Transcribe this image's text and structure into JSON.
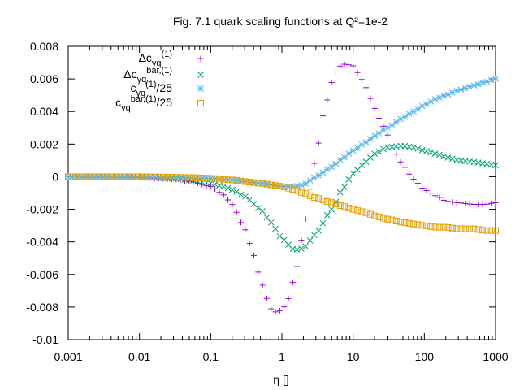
{
  "chart_data": {
    "type": "scatter",
    "title": "Fig. 7.1 quark scaling functions at Q²=1e-2",
    "xlabel": "η []",
    "ylabel": "",
    "x_scale": "log",
    "xlim": [
      0.001,
      1000
    ],
    "ylim": [
      -0.01,
      0.008
    ],
    "x_ticks": [
      "0.001",
      "0.01",
      "0.1",
      "1",
      "10",
      "100",
      "1000"
    ],
    "y_ticks": [
      "-0.01",
      "-0.008",
      "-0.006",
      "-0.004",
      "-0.002",
      "0",
      "0.002",
      "0.004",
      "0.006",
      "0.008"
    ],
    "legend_position": "top-left",
    "grid": false,
    "series": [
      {
        "name_main": "Δc",
        "name_sub": "γq",
        "name_sup": "(1)",
        "name_tail": "",
        "marker": "plus",
        "color": "#9400d3",
        "x": [
          0.001,
          0.003,
          0.01,
          0.03,
          0.05,
          0.1,
          0.15,
          0.2,
          0.3,
          0.4,
          0.5,
          0.6,
          0.7,
          0.8,
          1,
          1.2,
          1.5,
          2,
          2.5,
          3,
          4,
          5,
          6,
          7,
          8,
          10,
          12,
          15,
          20,
          25,
          30,
          40,
          50,
          70,
          100,
          150,
          200,
          300,
          500,
          700,
          1000
        ],
        "y": [
          0,
          -2e-05,
          -5e-05,
          -0.00015,
          -0.00028,
          -0.0006,
          -0.0011,
          -0.0017,
          -0.0032,
          -0.0048,
          -0.0063,
          -0.0074,
          -0.0081,
          -0.0083,
          -0.0082,
          -0.0076,
          -0.0062,
          -0.0034,
          -0.0007,
          0.0013,
          0.0042,
          0.0058,
          0.0066,
          0.0069,
          0.0069,
          0.0068,
          0.0063,
          0.0055,
          0.0042,
          0.0033,
          0.0026,
          0.0014,
          0.0007,
          -0.00015,
          -0.0008,
          -0.0012,
          -0.0015,
          -0.0016,
          -0.0017,
          -0.0017,
          -0.0016
        ]
      },
      {
        "name_main": "Δc",
        "name_sub": "γq",
        "name_sup": "bar,(1)",
        "name_tail": "",
        "marker": "cross",
        "color": "#009e73",
        "x": [
          0.001,
          0.01,
          0.03,
          0.05,
          0.1,
          0.15,
          0.2,
          0.3,
          0.5,
          0.7,
          1,
          1.5,
          2,
          3,
          5,
          7,
          10,
          15,
          20,
          30,
          50,
          70,
          100,
          150,
          200,
          300,
          500,
          700,
          1000
        ],
        "y": [
          0,
          -2e-05,
          -0.0001,
          -0.0002,
          -0.0004,
          -0.0006,
          -0.0008,
          -0.0012,
          -0.002,
          -0.0028,
          -0.0038,
          -0.0045,
          -0.0044,
          -0.0035,
          -0.002,
          -0.0008,
          0.0002,
          0.0009,
          0.0014,
          0.0018,
          0.0019,
          0.0018,
          0.0016,
          0.0014,
          0.0012,
          0.001,
          0.0009,
          0.0008,
          0.0007
        ]
      },
      {
        "name_main": "c",
        "name_sub": "γq",
        "name_sup": "(1)",
        "name_tail": "/25",
        "marker": "star",
        "color": "#56b4e9",
        "x": [
          0.001,
          0.01,
          0.1,
          0.2,
          0.3,
          0.5,
          0.7,
          1,
          1.5,
          2,
          3,
          5,
          7,
          10,
          15,
          20,
          30,
          50,
          70,
          100,
          150,
          200,
          300,
          500,
          700,
          1000
        ],
        "y": [
          0,
          -2e-05,
          -0.0001,
          -0.0002,
          -0.0003,
          -0.0004,
          -0.0005,
          -0.0006,
          -0.0006,
          -0.0005,
          0.0,
          0.0006,
          0.0011,
          0.0016,
          0.0021,
          0.0025,
          0.003,
          0.0036,
          0.004,
          0.0044,
          0.0048,
          0.005,
          0.0053,
          0.0056,
          0.0058,
          0.006
        ]
      },
      {
        "name_main": "c",
        "name_sub": "γq",
        "name_sup": "bar,(1)",
        "name_tail": "/25",
        "marker": "square",
        "color": "#e69f00",
        "x": [
          0.001,
          0.01,
          0.05,
          0.1,
          0.2,
          0.3,
          0.5,
          0.7,
          1,
          1.5,
          2,
          3,
          5,
          7,
          10,
          15,
          20,
          30,
          50,
          70,
          100,
          150,
          200,
          300,
          500,
          700,
          1000
        ],
        "y": [
          0,
          0,
          -5e-05,
          -0.0001,
          -0.0002,
          -0.0003,
          -0.0004,
          -0.0005,
          -0.0006,
          -0.0008,
          -0.001,
          -0.0013,
          -0.0016,
          -0.0018,
          -0.002,
          -0.0022,
          -0.0024,
          -0.0026,
          -0.0028,
          -0.0029,
          -0.003,
          -0.0031,
          -0.0031,
          -0.0032,
          -0.0032,
          -0.0033,
          -0.0033
        ]
      }
    ]
  }
}
